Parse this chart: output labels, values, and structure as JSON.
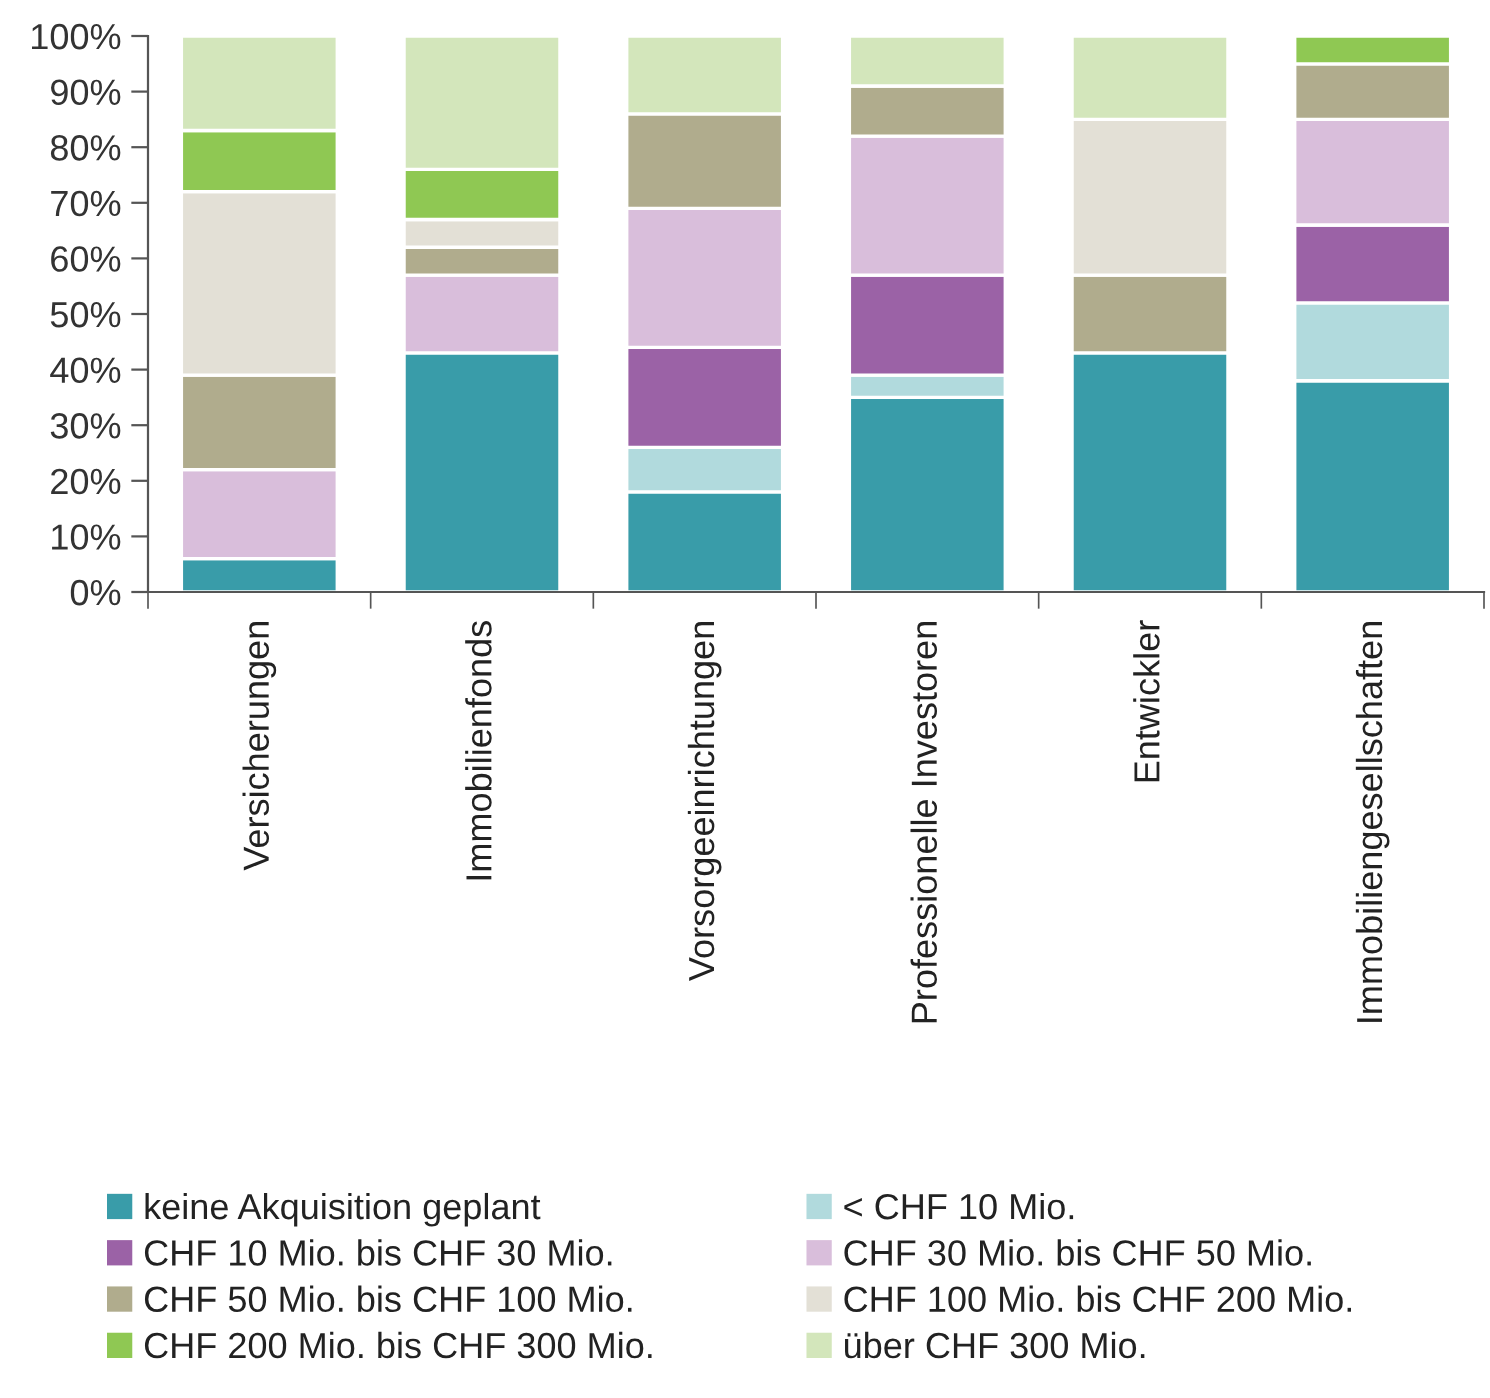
{
  "chart_data": {
    "type": "bar",
    "stacked": true,
    "categories": [
      "Versicherungen",
      "Immobilienfonds",
      "Vorsorgeeinrichtungen",
      "Professionelle Investoren",
      "Entwickler",
      "Immobiliengesellschaften"
    ],
    "series": [
      {
        "name": "keine Akquisition geplant",
        "color": "#399ca9",
        "values": [
          6,
          43,
          18,
          35,
          43,
          38
        ]
      },
      {
        "name": "< CHF 10 Mio.",
        "color": "#b1dadd",
        "values": [
          0,
          0,
          8,
          4,
          0,
          14
        ]
      },
      {
        "name": "CHF 10 Mio. bis CHF 30 Mio.",
        "color": "#9b62a6",
        "values": [
          0,
          0,
          18,
          18,
          0,
          14
        ]
      },
      {
        "name": "CHF 30 Mio. bis CHF 50 Mio.",
        "color": "#d9bedb",
        "values": [
          16,
          14,
          25,
          25,
          0,
          19
        ]
      },
      {
        "name": "CHF 50 Mio. bis CHF 100 Mio.",
        "color": "#b0ac8d",
        "values": [
          17,
          5,
          17,
          9,
          14,
          10
        ]
      },
      {
        "name": "CHF 100 Mio. bis CHF 200 Mio.",
        "color": "#e3e0d6",
        "values": [
          33,
          5,
          0,
          0,
          28,
          0
        ]
      },
      {
        "name": "CHF 200 Mio. bis CHF 300 Mio.",
        "color": "#8fc853",
        "values": [
          11,
          9,
          0,
          0,
          0,
          5
        ]
      },
      {
        "name": "über CHF 300 Mio.",
        "color": "#d3e6bb",
        "values": [
          17,
          24,
          14,
          9,
          15,
          0
        ]
      }
    ],
    "ylim": [
      0,
      100
    ],
    "yticks": [
      {
        "value": 0,
        "label": "0%"
      },
      {
        "value": 10,
        "label": "10%"
      },
      {
        "value": 20,
        "label": "20%"
      },
      {
        "value": 30,
        "label": "30%"
      },
      {
        "value": 40,
        "label": "40%"
      },
      {
        "value": 50,
        "label": "50%"
      },
      {
        "value": 60,
        "label": "60%"
      },
      {
        "value": 70,
        "label": "70%"
      },
      {
        "value": 80,
        "label": "80%"
      },
      {
        "value": 90,
        "label": "90%"
      },
      {
        "value": 100,
        "label": "100%"
      }
    ],
    "grid": false,
    "legend": "bottom"
  }
}
